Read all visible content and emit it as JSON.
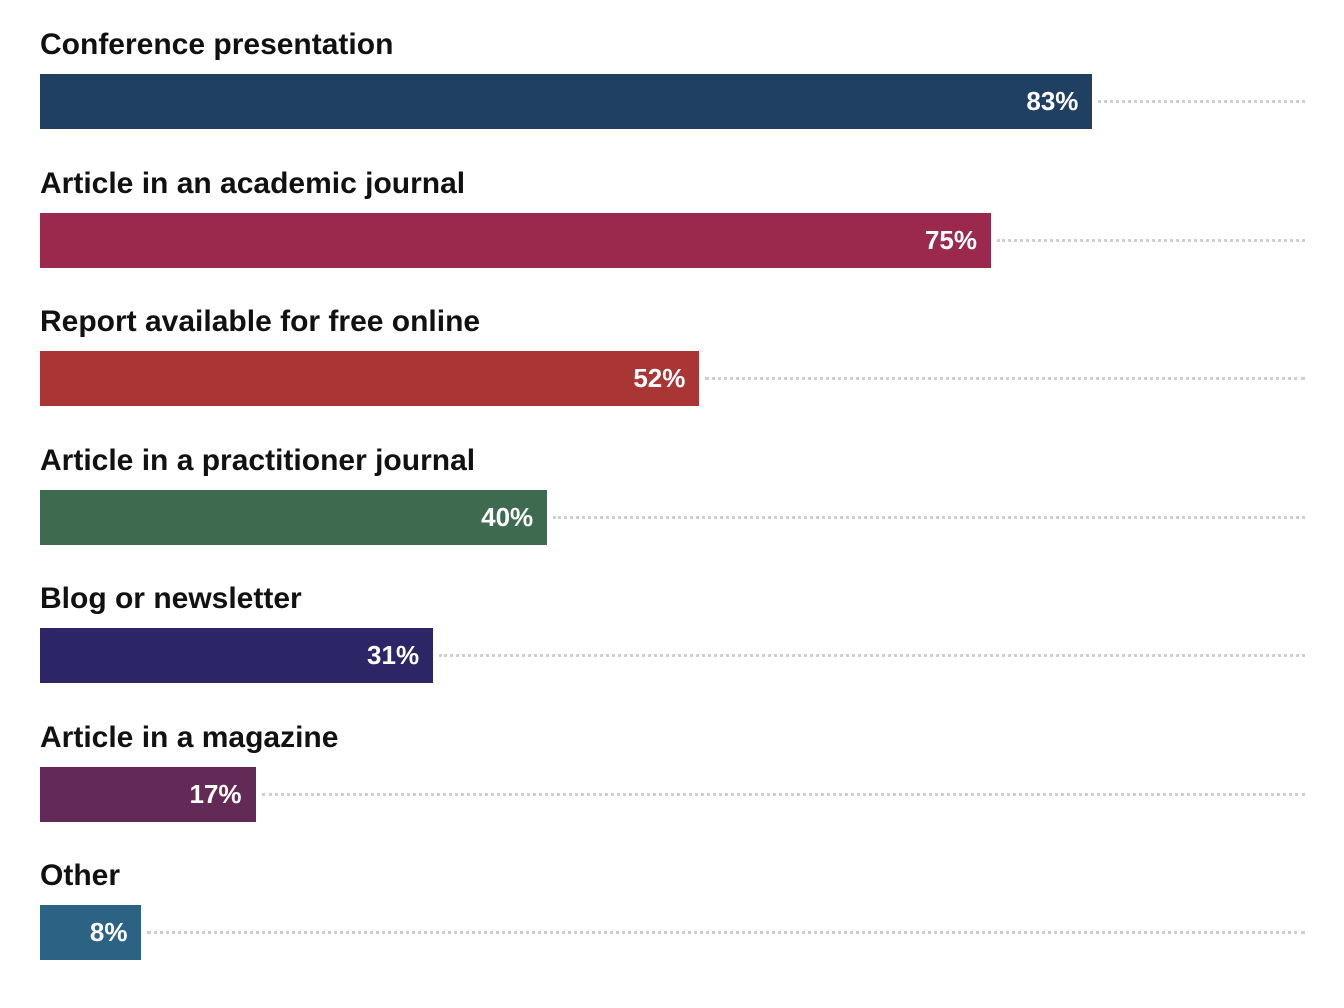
{
  "chart_data": {
    "type": "bar",
    "orientation": "horizontal",
    "categories": [
      "Conference presentation",
      "Article in an academic journal",
      "Report available for free online",
      "Article in a practitioner journal",
      "Blog or newsletter",
      "Article in a magazine",
      "Other"
    ],
    "values": [
      83,
      75,
      52,
      40,
      31,
      17,
      8
    ],
    "value_labels": [
      "83%",
      "75%",
      "52%",
      "40%",
      "31%",
      "17%",
      "8%"
    ],
    "colors": [
      "#1f3f63",
      "#9b284d",
      "#a93535",
      "#3e6b4f",
      "#2c2666",
      "#632a57",
      "#2c6283"
    ],
    "xlim": [
      0,
      100
    ],
    "grid": false,
    "legend": "none"
  }
}
